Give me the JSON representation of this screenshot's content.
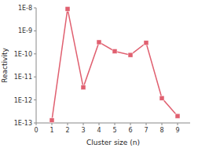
{
  "chart_data": {
    "type": "line",
    "x": [
      1,
      2,
      3,
      4,
      5,
      6,
      7,
      8,
      9
    ],
    "values": [
      1.3e-13,
      9e-09,
      3.5e-12,
      3.2e-10,
      1.3e-10,
      9e-11,
      3e-10,
      1.2e-12,
      2e-13
    ],
    "color": "#e06070",
    "marker": "square",
    "x_label": "Cluster size (n)",
    "y_label": "Reactivity",
    "log": "y",
    "grid": false,
    "xlim": [
      0,
      9.8
    ],
    "ylim": [
      1e-13,
      1e-08
    ],
    "xticks": [
      0,
      1,
      2,
      3,
      4,
      5,
      6,
      7,
      8,
      9
    ],
    "yticks": [
      {
        "value": 1e-13,
        "label": "1E-13"
      },
      {
        "value": 1e-12,
        "label": "1E-12"
      },
      {
        "value": 1e-11,
        "label": "1E-11"
      },
      {
        "value": 1e-10,
        "label": "1E-10"
      },
      {
        "value": 1e-09,
        "label": "1E-9"
      },
      {
        "value": 1e-08,
        "label": "1E-8"
      }
    ]
  }
}
